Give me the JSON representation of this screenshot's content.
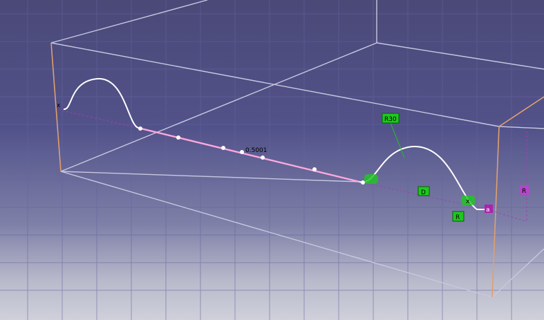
{
  "viewport": {
    "background_top": "#4a4978",
    "background_bottom": "#cfd0da",
    "grid_color": "#6a6a9a",
    "box_edge_color": "#c8c8dc",
    "highlight_edge_color": "#e0a070",
    "curve_color": "#ffffff",
    "spline_color": "#ff9ad8",
    "constraint_color": "#1ec81e",
    "axis_color": "#b020b0"
  },
  "labels": {
    "left_end": "x",
    "spline_tag": "0.5001",
    "rad_tag": "R30",
    "mid_tag": "D",
    "r_tag": "R",
    "right_tag": "R",
    "end_a": "x",
    "end_b": "a"
  }
}
